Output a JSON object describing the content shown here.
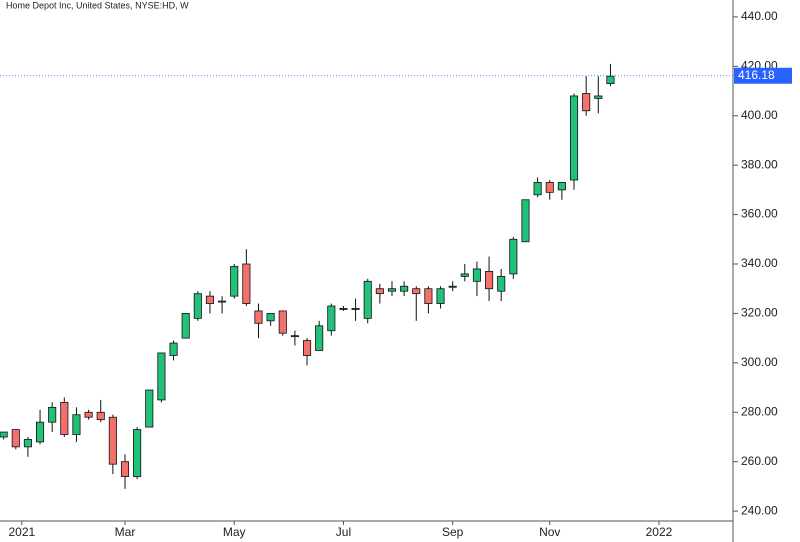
{
  "chart_data": {
    "type": "candlestick",
    "title": "Home Depot Inc, United States, NYSE:HD, W",
    "open": [
      270,
      273,
      266,
      268,
      276,
      284,
      271,
      280,
      280,
      278,
      260,
      254,
      274,
      285,
      303,
      310,
      318,
      327,
      325,
      327,
      340,
      321,
      317,
      321,
      311,
      309,
      305,
      313,
      322,
      322,
      318,
      330,
      329,
      329,
      330,
      330,
      324,
      331,
      335,
      333,
      337,
      329,
      336,
      349,
      368,
      373,
      370,
      374,
      409,
      407,
      413
    ],
    "high": [
      272,
      273,
      270,
      281,
      284,
      286,
      282,
      281,
      285,
      279,
      263,
      274,
      289,
      304,
      309,
      320,
      329,
      329,
      327,
      340,
      346,
      324,
      320,
      321,
      313,
      310,
      317,
      324,
      323,
      326,
      334,
      332,
      333,
      333,
      331,
      331,
      331,
      333,
      340,
      341,
      343,
      338,
      351,
      366,
      375,
      374,
      373,
      409,
      416,
      416,
      421
    ],
    "low": [
      269,
      265,
      262,
      267,
      272,
      270,
      268,
      277,
      276,
      255,
      249,
      253,
      274,
      284,
      301,
      310,
      317,
      320,
      320,
      326,
      323,
      310,
      315,
      311,
      307,
      299,
      305,
      311,
      321,
      317,
      316,
      324,
      327,
      327,
      317,
      320,
      322,
      329,
      333,
      327,
      325,
      325,
      334,
      349,
      367,
      366,
      366,
      370,
      400,
      401,
      412
    ],
    "close": [
      272,
      266,
      269,
      276,
      282,
      271,
      279,
      278,
      277,
      259,
      254,
      273,
      289,
      304,
      308,
      320,
      328,
      324,
      325,
      339,
      324,
      316,
      320,
      312,
      311,
      303,
      315,
      323,
      322,
      322,
      333,
      328,
      330,
      331,
      328,
      324,
      330,
      331,
      336,
      338,
      330,
      335,
      350,
      366,
      373,
      369,
      373,
      408,
      402,
      408,
      416
    ],
    "up_color": "#22c17a",
    "down_color": "#f4716b",
    "xlim": [
      -0.3,
      60.1
    ],
    "xticks": [
      {
        "value": 1.5,
        "label": "2021"
      },
      {
        "value": 10,
        "label": "Mar"
      },
      {
        "value": 19,
        "label": "May"
      },
      {
        "value": 28,
        "label": "Jul"
      },
      {
        "value": 37,
        "label": "Sep"
      },
      {
        "value": 45,
        "label": "Nov"
      },
      {
        "value": 54,
        "label": "2022"
      }
    ],
    "ylim": [
      236,
      444
    ],
    "yticks": [
      {
        "value": 240,
        "label": "240.00"
      },
      {
        "value": 260,
        "label": "260.00"
      },
      {
        "value": 280,
        "label": "280.00"
      },
      {
        "value": 300,
        "label": "300.00"
      },
      {
        "value": 320,
        "label": "320.00"
      },
      {
        "value": 340,
        "label": "340.00"
      },
      {
        "value": 360,
        "label": "360.00"
      },
      {
        "value": 380,
        "label": "380.00"
      },
      {
        "value": 400,
        "label": "400.00"
      },
      {
        "value": 420,
        "label": "420.00"
      },
      {
        "value": 440,
        "label": "440.00"
      }
    ],
    "last_price": {
      "value": 416.18,
      "label": "416.18",
      "color": "#2962ff"
    }
  }
}
